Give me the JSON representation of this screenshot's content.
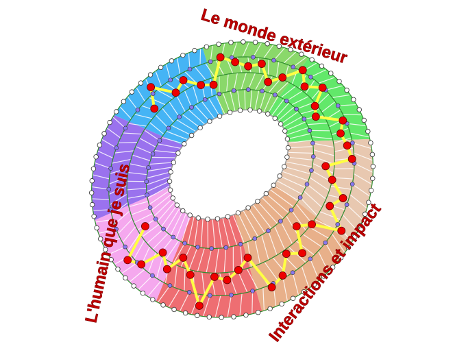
{
  "labels": {
    "top": "Le monde extérieur",
    "left": "L'humain que je suis",
    "right": "Interactions et impact"
  },
  "sector_colors": [
    "#45b4f5",
    "#8ad86a",
    "#62e86a",
    "#e8c8b0",
    "#e8b08a",
    "#ee6e72",
    "#f5a8ee",
    "#9a72ee"
  ],
  "colors": {
    "label": "#c00000",
    "ring_lines": "#2e8b2e",
    "spokes": "#ffffff",
    "path": "#ffff44",
    "path_nodes": "#ee0000",
    "inner_nodes": "#8878ee",
    "rim_nodes": "#ffffff"
  }
}
